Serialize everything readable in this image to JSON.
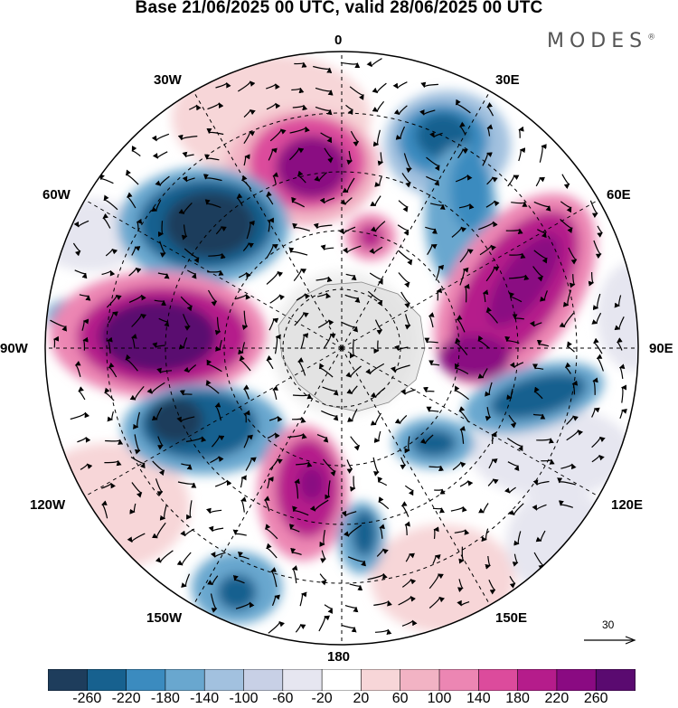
{
  "title": "Base 21/06/2025 00 UTC, valid 28/06/2025 00 UTC",
  "brand": "MODES",
  "brand_mark": "®",
  "map_labels": {
    "top": "0",
    "bottom": "180",
    "left": "90W",
    "right": "90E",
    "nw1": "30W",
    "nw2": "60W",
    "ne1": "30E",
    "ne2": "60E",
    "sw1": "120W",
    "sw2": "150W",
    "se1": "120E",
    "se2": "150E"
  },
  "reference_vector": "30",
  "colorbar": {
    "colors": [
      "#1e3d5c",
      "#17618f",
      "#3b8bbf",
      "#69a7cf",
      "#a2c1df",
      "#c8d0e6",
      "#e6e6f0",
      "#ffffff",
      "#f7d6d8",
      "#f2b3c4",
      "#ec86b3",
      "#dc4b9c",
      "#b51c8b",
      "#8a0a82",
      "#5a0a70"
    ],
    "ticks": [
      "-260",
      "-220",
      "-180",
      "-140",
      "-100",
      "-60",
      "-20",
      "20",
      "60",
      "100",
      "140",
      "180",
      "220",
      "260"
    ]
  },
  "anomaly_cells": [
    {
      "color": "#8a0a82",
      "lon": -20,
      "colat": 22
    },
    {
      "color": "#b51c8b",
      "lon": -15,
      "colat": 20
    },
    {
      "color": "#1e3d5c",
      "lon": -50,
      "colat": 28
    },
    {
      "color": "#8a0a82",
      "lon": -82,
      "colat": 28
    },
    {
      "color": "#1e3d5c",
      "lon": -120,
      "colat": 24
    },
    {
      "color": "#b51c8b",
      "lon": -165,
      "colat": 20
    },
    {
      "color": "#3b8bbf",
      "lon": 25,
      "colat": 20
    },
    {
      "color": "#8a0a82",
      "lon": 65,
      "colat": 25
    },
    {
      "color": "#17618f",
      "lon": 110,
      "colat": 28
    },
    {
      "color": "#ec86b3",
      "lon": 150,
      "colat": 26
    }
  ]
}
